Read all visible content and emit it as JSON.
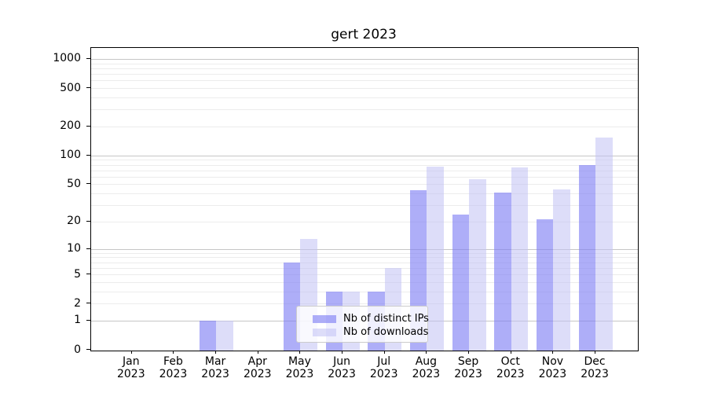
{
  "chart_data": {
    "type": "bar",
    "title": "gert 2023",
    "scale": "log10(1+v)",
    "ylim": [
      0,
      1300
    ],
    "grid": "on",
    "legend_position": "lower center",
    "categories": [
      {
        "month": "Jan",
        "year": "2023"
      },
      {
        "month": "Feb",
        "year": "2023"
      },
      {
        "month": "Mar",
        "year": "2023"
      },
      {
        "month": "Apr",
        "year": "2023"
      },
      {
        "month": "May",
        "year": "2023"
      },
      {
        "month": "Jun",
        "year": "2023"
      },
      {
        "month": "Jul",
        "year": "2023"
      },
      {
        "month": "Aug",
        "year": "2023"
      },
      {
        "month": "Sep",
        "year": "2023"
      },
      {
        "month": "Oct",
        "year": "2023"
      },
      {
        "month": "Nov",
        "year": "2023"
      },
      {
        "month": "Dec",
        "year": "2023"
      }
    ],
    "yticks": [
      0,
      1,
      2,
      5,
      10,
      20,
      50,
      100,
      200,
      500,
      1000
    ],
    "series": [
      {
        "name": "Nb of distinct IPs",
        "color": "rgba(124,124,243,0.62)",
        "values": [
          0,
          0,
          1,
          0,
          7,
          3,
          3,
          43,
          24,
          41,
          21,
          80
        ]
      },
      {
        "name": "Nb of downloads",
        "color": "rgba(193,193,244,0.55)",
        "values": [
          0,
          0,
          1,
          0,
          13,
          3,
          6,
          76,
          56,
          75,
          44,
          155
        ]
      }
    ],
    "colors": {
      "axis": "#000000",
      "grid_major": "#c6c6c6",
      "grid_minor": "#ececec",
      "legend_border": "#cccccc"
    }
  }
}
